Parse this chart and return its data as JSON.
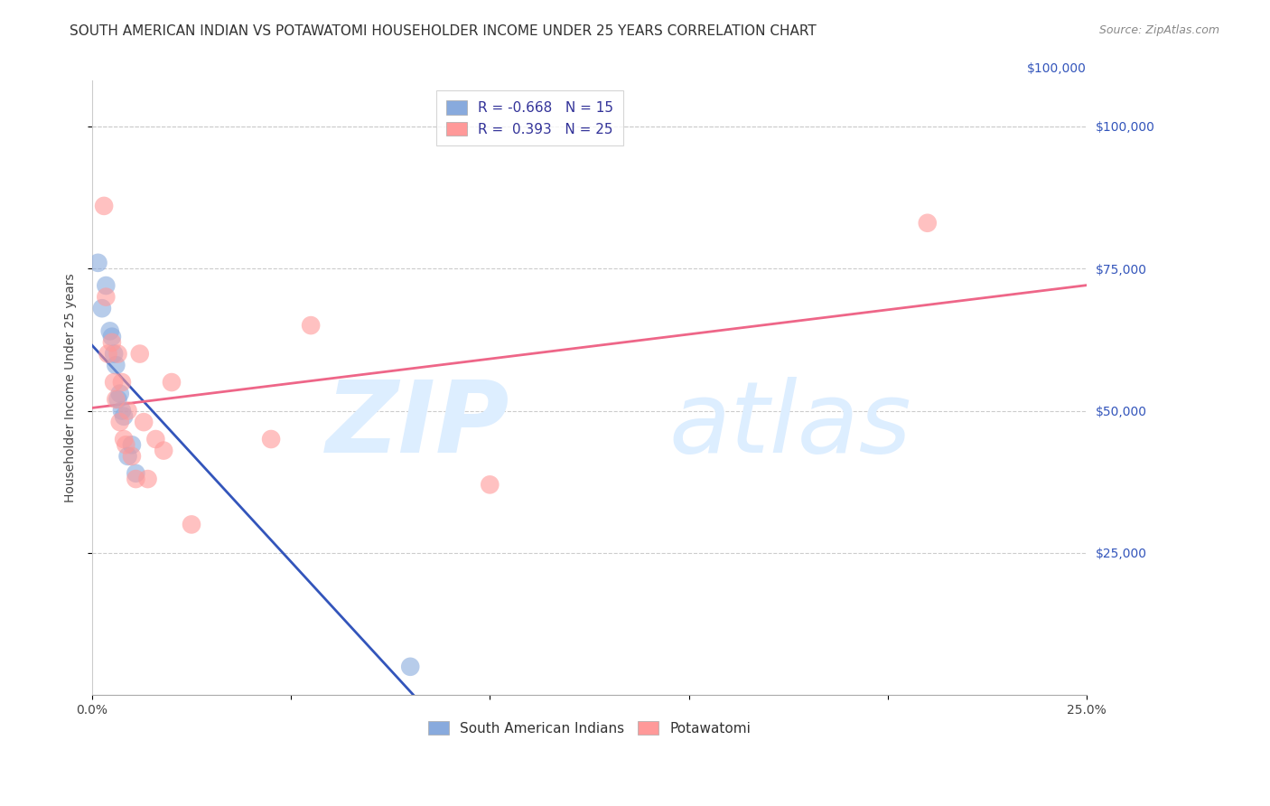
{
  "title": "SOUTH AMERICAN INDIAN VS POTAWATOMI HOUSEHOLDER INCOME UNDER 25 YEARS CORRELATION CHART",
  "source_text": "Source: ZipAtlas.com",
  "ylabel": "Householder Income Under 25 years",
  "xlabel_ticks_show": [
    "0.0%",
    "25.0%"
  ],
  "xlabel_vals": [
    0.0,
    5.0,
    10.0,
    15.0,
    20.0,
    25.0
  ],
  "ylabel_ticks": [
    "$100,000",
    "$75,000",
    "$50,000",
    "$25,000"
  ],
  "ylabel_vals": [
    100000,
    75000,
    50000,
    25000
  ],
  "xlim": [
    0.0,
    25.0
  ],
  "ylim": [
    0,
    108000
  ],
  "blue_label": "South American Indians",
  "pink_label": "Potawatomi",
  "blue_R": "-0.668",
  "blue_N": "15",
  "pink_R": "0.393",
  "pink_N": "25",
  "blue_color": "#88AADD",
  "pink_color": "#FF9999",
  "blue_line_color": "#3355BB",
  "pink_line_color": "#EE6688",
  "watermark_zip": "ZIP",
  "watermark_atlas": "atlas",
  "watermark_color": "#DDEEFF",
  "blue_x": [
    0.15,
    0.25,
    0.35,
    0.45,
    0.5,
    0.55,
    0.6,
    0.65,
    0.7,
    0.75,
    0.8,
    0.9,
    1.0,
    1.1,
    8.0
  ],
  "blue_y": [
    76000,
    68000,
    72000,
    64000,
    63000,
    60000,
    58000,
    52000,
    53000,
    50000,
    49000,
    42000,
    44000,
    39000,
    5000
  ],
  "pink_x": [
    0.3,
    0.35,
    0.4,
    0.5,
    0.55,
    0.6,
    0.65,
    0.7,
    0.75,
    0.8,
    0.85,
    0.9,
    1.0,
    1.1,
    1.2,
    1.3,
    1.4,
    1.6,
    1.8,
    2.0,
    2.5,
    4.5,
    5.5,
    10.0,
    21.0
  ],
  "pink_y": [
    86000,
    70000,
    60000,
    62000,
    55000,
    52000,
    60000,
    48000,
    55000,
    45000,
    44000,
    50000,
    42000,
    38000,
    60000,
    48000,
    38000,
    45000,
    43000,
    55000,
    30000,
    45000,
    65000,
    37000,
    83000
  ],
  "title_fontsize": 11,
  "axis_label_fontsize": 10,
  "tick_fontsize": 10,
  "legend_fontsize": 11
}
